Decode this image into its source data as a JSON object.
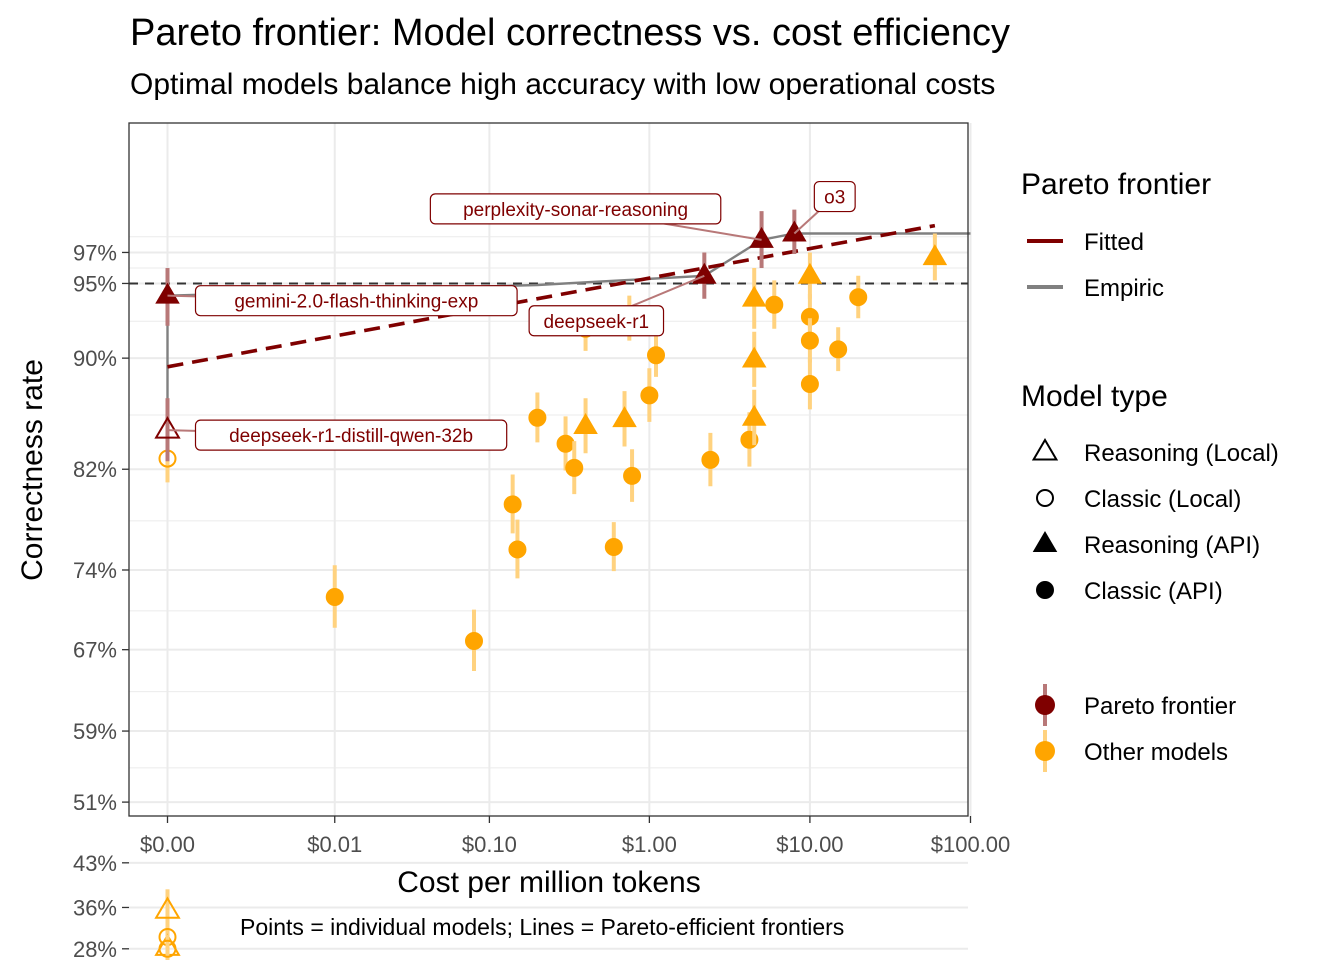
{
  "title": "Pareto frontier: Model correctness vs. cost efficiency",
  "subtitle": "Optimal models balance high accuracy with low operational costs",
  "caption": "Points = individual models; Lines = Pareto-efficient frontiers",
  "colors": {
    "frontier": "#7f0000",
    "frontier_bar": "#b87878",
    "other": "#ffa500",
    "other_bar": "#ffd27f",
    "empiric": "#808080",
    "grid": "#ebebeb"
  },
  "chart_data": {
    "type": "scatter",
    "xlabel": "Cost per million tokens",
    "ylabel": "Correctness rate",
    "x_scale": "log with zero",
    "x_ticks": [
      {
        "value": 0,
        "label": "$0.00"
      },
      {
        "value": 0.01,
        "label": "$0.01"
      },
      {
        "value": 0.1,
        "label": "$0.10"
      },
      {
        "value": 1,
        "label": "$1.00"
      },
      {
        "value": 10,
        "label": "$10.00"
      },
      {
        "value": 100,
        "label": "$100.00"
      }
    ],
    "y_ticks": [
      {
        "value": 28,
        "label": "28%"
      },
      {
        "value": 36,
        "label": "36%"
      },
      {
        "value": 43,
        "label": "43%"
      },
      {
        "value": 51,
        "label": "51%"
      },
      {
        "value": 59,
        "label": "59%"
      },
      {
        "value": 67,
        "label": "67%"
      },
      {
        "value": 74,
        "label": "74%"
      },
      {
        "value": 82,
        "label": "82%"
      },
      {
        "value": 90,
        "label": "90%"
      },
      {
        "value": 95,
        "label": "95%"
      },
      {
        "value": 97,
        "label": "97%"
      }
    ],
    "grid": true,
    "reference_line": {
      "y": 95,
      "style": "dashed"
    },
    "legend": {
      "position": "right",
      "frontier_title": "Pareto frontier",
      "frontier_items": [
        "Fitted",
        "Empiric"
      ],
      "type_title": "Model type",
      "type_items": [
        "Reasoning (Local)",
        "Classic (Local)",
        "Reasoning (API)",
        "Classic (API)"
      ],
      "group_items": [
        "Pareto frontier",
        "Other models"
      ]
    },
    "points": [
      {
        "name": "gemini-2.0-flash-thinking-exp",
        "x": 0,
        "y": 94.2,
        "lo": 92.2,
        "hi": 96.0,
        "type": "Reasoning (API)",
        "group": "Pareto frontier"
      },
      {
        "name": "deepseek-r1-distill-qwen-32b",
        "x": 0,
        "y": 84.9,
        "lo": 82.6,
        "hi": 87.2,
        "type": "Reasoning (Local)",
        "group": "Pareto frontier"
      },
      {
        "name": "deepseek-r1",
        "x": 2.2,
        "y": 95.5,
        "lo": 94.0,
        "hi": 97.0,
        "type": "Reasoning (API)",
        "group": "Pareto frontier"
      },
      {
        "name": "perplexity-sonar-reasoning",
        "x": 5.0,
        "y": 97.8,
        "lo": 96.0,
        "hi": 99.6,
        "type": "Reasoning (API)",
        "group": "Pareto frontier"
      },
      {
        "name": "o3",
        "x": 8.0,
        "y": 98.2,
        "lo": 96.9,
        "hi": 99.7,
        "type": "Reasoning (API)",
        "group": "Pareto frontier"
      },
      {
        "x": 0,
        "y": 82.8,
        "lo": 81.0,
        "hi": 84.6,
        "type": "Classic (Local)",
        "group": "Other models"
      },
      {
        "x": 0,
        "y": 35.5,
        "lo": 32.0,
        "hi": 39.0,
        "type": "Reasoning (Local)",
        "group": "Other models"
      },
      {
        "x": 0,
        "y": 30.5,
        "lo": 27.5,
        "hi": 33.5,
        "type": "Classic (Local)",
        "group": "Other models"
      },
      {
        "x": 0,
        "y": 28.3,
        "lo": 25.3,
        "hi": 31.3,
        "type": "Reasoning (Local)",
        "group": "Other models"
      },
      {
        "x": 0,
        "y": 28.0,
        "lo": 25.0,
        "hi": 31.0,
        "type": "Classic (Local)",
        "group": "Other models"
      },
      {
        "x": 0.01,
        "y": 71.7,
        "lo": 69.0,
        "hi": 74.4,
        "type": "Classic (API)",
        "group": "Other models"
      },
      {
        "x": 0.08,
        "y": 67.8,
        "lo": 65.0,
        "hi": 70.6,
        "type": "Classic (API)",
        "group": "Other models"
      },
      {
        "x": 0.14,
        "y": 79.3,
        "lo": 77.0,
        "hi": 81.6,
        "type": "Classic (API)",
        "group": "Other models"
      },
      {
        "x": 0.15,
        "y": 75.7,
        "lo": 73.3,
        "hi": 78.1,
        "type": "Classic (API)",
        "group": "Other models"
      },
      {
        "x": 0.2,
        "y": 85.8,
        "lo": 84.0,
        "hi": 87.6,
        "type": "Classic (API)",
        "group": "Other models"
      },
      {
        "x": 0.3,
        "y": 83.9,
        "lo": 81.9,
        "hi": 85.9,
        "type": "Classic (API)",
        "group": "Other models"
      },
      {
        "x": 0.34,
        "y": 82.1,
        "lo": 80.1,
        "hi": 84.1,
        "type": "Classic (API)",
        "group": "Other models"
      },
      {
        "x": 0.4,
        "y": 85.2,
        "lo": 83.2,
        "hi": 87.2,
        "type": "Reasoning (API)",
        "group": "Other models"
      },
      {
        "x": 0.4,
        "y": 92.0,
        "lo": 90.5,
        "hi": 93.5,
        "type": "Classic (API)",
        "group": "Other models"
      },
      {
        "x": 0.6,
        "y": 75.9,
        "lo": 73.9,
        "hi": 77.9,
        "type": "Classic (API)",
        "group": "Other models"
      },
      {
        "x": 0.7,
        "y": 85.7,
        "lo": 83.7,
        "hi": 87.7,
        "type": "Reasoning (API)",
        "group": "Other models"
      },
      {
        "x": 0.75,
        "y": 92.7,
        "lo": 91.2,
        "hi": 94.2,
        "type": "Classic (API)",
        "group": "Other models"
      },
      {
        "x": 0.78,
        "y": 81.5,
        "lo": 79.5,
        "hi": 83.5,
        "type": "Classic (API)",
        "group": "Other models"
      },
      {
        "x": 1.0,
        "y": 87.4,
        "lo": 85.5,
        "hi": 89.3,
        "type": "Classic (API)",
        "group": "Other models"
      },
      {
        "x": 1.1,
        "y": 90.2,
        "lo": 88.7,
        "hi": 91.7,
        "type": "Classic (API)",
        "group": "Other models"
      },
      {
        "x": 2.4,
        "y": 82.7,
        "lo": 80.7,
        "hi": 84.7,
        "type": "Classic (API)",
        "group": "Other models"
      },
      {
        "x": 4.2,
        "y": 84.2,
        "lo": 82.2,
        "hi": 86.2,
        "type": "Classic (API)",
        "group": "Other models"
      },
      {
        "x": 4.5,
        "y": 85.8,
        "lo": 83.8,
        "hi": 87.8,
        "type": "Reasoning (API)",
        "group": "Other models"
      },
      {
        "x": 4.5,
        "y": 89.9,
        "lo": 88.0,
        "hi": 91.8,
        "type": "Reasoning (API)",
        "group": "Other models"
      },
      {
        "x": 4.5,
        "y": 94.0,
        "lo": 92.0,
        "hi": 96.0,
        "type": "Reasoning (API)",
        "group": "Other models"
      },
      {
        "x": 6.0,
        "y": 93.6,
        "lo": 92.0,
        "hi": 95.2,
        "type": "Classic (API)",
        "group": "Other models"
      },
      {
        "x": 10.0,
        "y": 95.5,
        "lo": 94.0,
        "hi": 97.0,
        "type": "Reasoning (API)",
        "group": "Other models"
      },
      {
        "x": 10.0,
        "y": 92.8,
        "lo": 91.3,
        "hi": 94.3,
        "type": "Classic (API)",
        "group": "Other models"
      },
      {
        "x": 10.0,
        "y": 91.2,
        "lo": 89.7,
        "hi": 92.7,
        "type": "Classic (API)",
        "group": "Other models"
      },
      {
        "x": 10.0,
        "y": 88.2,
        "lo": 86.4,
        "hi": 90.0,
        "type": "Classic (API)",
        "group": "Other models"
      },
      {
        "x": 15.0,
        "y": 90.6,
        "lo": 89.1,
        "hi": 92.1,
        "type": "Classic (API)",
        "group": "Other models"
      },
      {
        "x": 20.0,
        "y": 94.1,
        "lo": 92.7,
        "hi": 95.5,
        "type": "Classic (API)",
        "group": "Other models"
      },
      {
        "x": 60.0,
        "y": 96.7,
        "lo": 95.2,
        "hi": 98.2,
        "type": "Reasoning (API)",
        "group": "Other models"
      }
    ],
    "frontier_fitted": [
      {
        "x": 0,
        "y": 89.4
      },
      {
        "x": 60.0,
        "y": 98.7
      }
    ],
    "frontier_empiric": [
      {
        "x": 0,
        "y": 84.9
      },
      {
        "x": 0,
        "y": 94.2
      },
      {
        "x": 0.2,
        "y": 94.9
      },
      {
        "x": 2.2,
        "y": 95.5
      },
      {
        "x": 5.0,
        "y": 97.8
      },
      {
        "x": 8.0,
        "y": 98.2
      },
      {
        "x": 100.0,
        "y": 98.2
      }
    ]
  }
}
